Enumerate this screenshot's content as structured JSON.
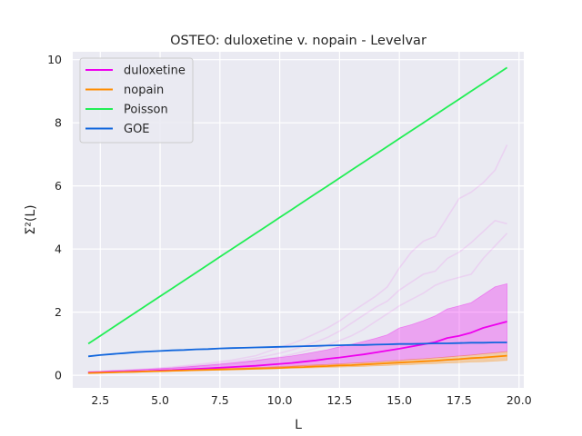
{
  "chart_data": {
    "type": "line",
    "title": "OSTEO: duloxetine v. nopain - Levelvar",
    "xlabel": "L",
    "ylabel": "Σ²(L)",
    "xlim": [
      1.35,
      20.2
    ],
    "ylim": [
      -0.4,
      10.25
    ],
    "xticks": [
      2.5,
      5.0,
      7.5,
      10.0,
      12.5,
      15.0,
      17.5,
      20.0
    ],
    "xtick_labels": [
      "2.5",
      "5.0",
      "7.5",
      "10.0",
      "12.5",
      "15.0",
      "17.5",
      "20.0"
    ],
    "yticks": [
      0,
      2,
      4,
      6,
      8,
      10
    ],
    "ytick_labels": [
      "0",
      "2",
      "4",
      "6",
      "8",
      "10"
    ],
    "grid": true,
    "legend_position": "top-left",
    "x": [
      2.0,
      2.5,
      3.0,
      3.5,
      4.0,
      4.5,
      5.0,
      5.5,
      6.0,
      6.5,
      7.0,
      7.5,
      8.0,
      8.5,
      9.0,
      9.5,
      10.0,
      10.5,
      11.0,
      11.5,
      12.0,
      12.5,
      13.0,
      13.5,
      14.0,
      14.5,
      15.0,
      15.5,
      16.0,
      16.5,
      17.0,
      17.5,
      18.0,
      18.5,
      19.0,
      19.5
    ],
    "series": [
      {
        "name": "duloxetine",
        "color": "#ee00ee",
        "values": [
          0.08,
          0.09,
          0.1,
          0.11,
          0.12,
          0.13,
          0.15,
          0.16,
          0.18,
          0.2,
          0.22,
          0.24,
          0.26,
          0.28,
          0.3,
          0.33,
          0.36,
          0.39,
          0.43,
          0.47,
          0.52,
          0.56,
          0.61,
          0.66,
          0.72,
          0.78,
          0.84,
          0.91,
          0.98,
          1.05,
          1.18,
          1.25,
          1.35,
          1.5,
          1.6,
          1.7
        ],
        "band_low": [
          0.06,
          0.07,
          0.08,
          0.09,
          0.1,
          0.11,
          0.12,
          0.13,
          0.14,
          0.16,
          0.17,
          0.18,
          0.19,
          0.21,
          0.22,
          0.24,
          0.26,
          0.28,
          0.3,
          0.32,
          0.34,
          0.36,
          0.38,
          0.4,
          0.42,
          0.45,
          0.47,
          0.5,
          0.52,
          0.55,
          0.58,
          0.61,
          0.64,
          0.68,
          0.71,
          0.75
        ],
        "band_high": [
          0.11,
          0.12,
          0.14,
          0.15,
          0.17,
          0.19,
          0.21,
          0.23,
          0.26,
          0.29,
          0.32,
          0.35,
          0.39,
          0.43,
          0.47,
          0.52,
          0.56,
          0.61,
          0.67,
          0.74,
          0.81,
          0.9,
          0.98,
          1.07,
          1.17,
          1.28,
          1.5,
          1.6,
          1.73,
          1.88,
          2.1,
          2.2,
          2.3,
          2.55,
          2.8,
          2.9
        ]
      },
      {
        "name": "nopain",
        "color": "#ff8c00",
        "values": [
          0.07,
          0.08,
          0.09,
          0.1,
          0.11,
          0.12,
          0.13,
          0.14,
          0.15,
          0.16,
          0.17,
          0.18,
          0.19,
          0.2,
          0.21,
          0.22,
          0.23,
          0.25,
          0.26,
          0.28,
          0.29,
          0.31,
          0.32,
          0.34,
          0.36,
          0.38,
          0.4,
          0.42,
          0.44,
          0.46,
          0.49,
          0.51,
          0.54,
          0.56,
          0.59,
          0.62
        ],
        "band_low": [
          0.06,
          0.07,
          0.08,
          0.09,
          0.1,
          0.11,
          0.12,
          0.13,
          0.14,
          0.15,
          0.16,
          0.16,
          0.17,
          0.18,
          0.19,
          0.2,
          0.21,
          0.22,
          0.23,
          0.24,
          0.25,
          0.26,
          0.27,
          0.28,
          0.3,
          0.31,
          0.33,
          0.34,
          0.36,
          0.37,
          0.39,
          0.4,
          0.42,
          0.43,
          0.45,
          0.47
        ],
        "band_high": [
          0.09,
          0.1,
          0.11,
          0.12,
          0.13,
          0.14,
          0.15,
          0.16,
          0.17,
          0.18,
          0.2,
          0.21,
          0.22,
          0.23,
          0.25,
          0.26,
          0.28,
          0.29,
          0.31,
          0.33,
          0.34,
          0.36,
          0.38,
          0.4,
          0.42,
          0.45,
          0.47,
          0.5,
          0.52,
          0.55,
          0.58,
          0.61,
          0.64,
          0.68,
          0.71,
          0.75
        ]
      },
      {
        "name": "Poisson",
        "color": "#22ee55",
        "values": [
          1.0,
          1.25,
          1.5,
          1.75,
          2.0,
          2.25,
          2.5,
          2.75,
          3.0,
          3.25,
          3.5,
          3.75,
          4.0,
          4.25,
          4.5,
          4.75,
          5.0,
          5.25,
          5.5,
          5.75,
          6.0,
          6.25,
          6.5,
          6.75,
          7.0,
          7.25,
          7.5,
          7.75,
          8.0,
          8.25,
          8.5,
          8.75,
          9.0,
          9.25,
          9.5,
          9.75
        ]
      },
      {
        "name": "GOE",
        "color": "#1166dd",
        "values": [
          0.6,
          0.64,
          0.67,
          0.7,
          0.73,
          0.75,
          0.77,
          0.79,
          0.8,
          0.82,
          0.83,
          0.85,
          0.86,
          0.87,
          0.88,
          0.89,
          0.9,
          0.91,
          0.92,
          0.93,
          0.94,
          0.95,
          0.96,
          0.96,
          0.97,
          0.98,
          0.99,
          0.99,
          1.0,
          1.01,
          1.01,
          1.02,
          1.03,
          1.03,
          1.04,
          1.04
        ]
      }
    ],
    "faint_traces": [
      {
        "color": "#ee00ee",
        "values": [
          0.1,
          0.12,
          0.14,
          0.16,
          0.18,
          0.2,
          0.23,
          0.26,
          0.3,
          0.34,
          0.38,
          0.43,
          0.48,
          0.55,
          0.62,
          0.75,
          0.88,
          1.0,
          1.15,
          1.32,
          1.5,
          1.72,
          2.0,
          2.25,
          2.5,
          2.8,
          3.4,
          3.9,
          4.25,
          4.4,
          5.0,
          5.6,
          5.8,
          6.1,
          6.5,
          7.3
        ]
      },
      {
        "color": "#ee00ee",
        "values": [
          0.09,
          0.11,
          0.13,
          0.15,
          0.17,
          0.19,
          0.21,
          0.24,
          0.27,
          0.3,
          0.34,
          0.38,
          0.43,
          0.48,
          0.54,
          0.62,
          0.7,
          0.8,
          0.92,
          1.05,
          1.2,
          1.4,
          1.65,
          1.9,
          2.15,
          2.35,
          2.7,
          2.95,
          3.2,
          3.3,
          3.7,
          3.9,
          4.2,
          4.55,
          4.9,
          4.8
        ]
      },
      {
        "color": "#ee00ee",
        "values": [
          0.09,
          0.1,
          0.12,
          0.13,
          0.15,
          0.17,
          0.19,
          0.21,
          0.24,
          0.27,
          0.3,
          0.33,
          0.37,
          0.41,
          0.46,
          0.52,
          0.58,
          0.66,
          0.75,
          0.85,
          0.96,
          1.1,
          1.25,
          1.45,
          1.7,
          1.95,
          2.2,
          2.4,
          2.6,
          2.85,
          3.0,
          3.1,
          3.2,
          3.7,
          4.1,
          4.5
        ]
      }
    ]
  }
}
